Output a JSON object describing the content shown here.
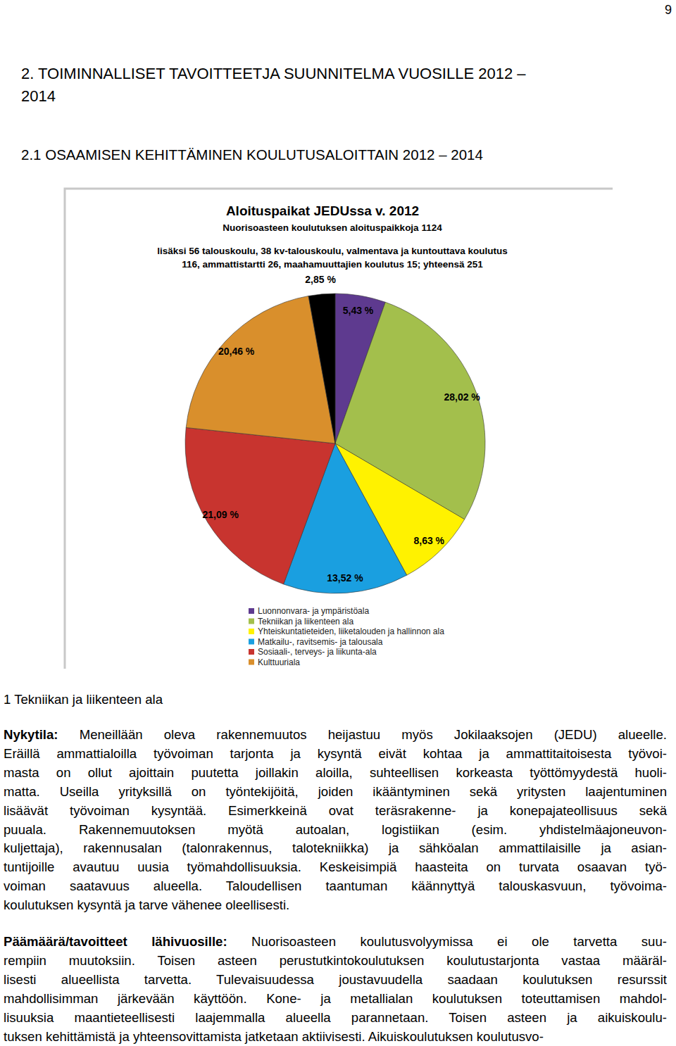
{
  "page_number": "9",
  "headings": [
    "2. TOIMINNALLISET TAVOITTEETJA SUUNNITELMA VUOSILLE 2012 –",
    "2014",
    "2.1 OSAAMISEN KEHITTÄMINEN KOULUTUSALOITTAIN 2012 – 2014"
  ],
  "chart_data": {
    "type": "pie",
    "title": "Aloituspaikat JEDUssa v. 2012",
    "subtitle": [
      "Nuorisoasteen koulutuksen aloituspaikkoja 1124",
      "lisäksi 56 talouskoulu, 38 kv-talouskoulu, valmentava ja kuntouttava koulutus",
      "116, ammattistartti 26, maahamuuttajien koulutus 15; yhteensä 251"
    ],
    "categories": [
      "Luonnonvara- ja ympäristöala",
      "Tekniikan ja liikenteen ala",
      "Yhteiskuntatieteiden, liiketalouden ja hallinnon ala",
      "Matkailu-, ravitsemis- ja talousala",
      "Sosiaali-, terveys- ja liikunta-ala",
      "Kulttuuriala",
      null
    ],
    "values": [
      5.43,
      28.02,
      8.63,
      13.52,
      21.09,
      20.46,
      2.85
    ],
    "value_labels": [
      "5,43 %",
      "28,02 %",
      "8,63 %",
      "13,52 %",
      "21,09 %",
      "20,46 %",
      "2,85 %"
    ],
    "colors": [
      "#5e3a8f",
      "#a3bf4c",
      "#fff200",
      "#1a9fe0",
      "#c8342f",
      "#d98f2c",
      "#000000"
    ],
    "data_labels": true,
    "legend": "bottom"
  },
  "section_title": "1 Tekniikan ja liikenteen ala",
  "paragraphs": [
    {
      "lead": "Nykytila:",
      "lines": [
        "Meneillään oleva rakennemuutos heijastuu myös Jokilaaksojen (JEDU) alueelle.",
        "Eräillä ammattialoilla työvoiman tarjonta ja kysyntä eivät kohtaa ja ammattitaitoisesta työvoi-",
        "masta on ollut ajoittain puutetta joillakin aloilla, suhteellisen korkeasta työttömyydestä huoli-",
        "matta. Useilla yrityksillä on työntekijöitä, joiden ikääntyminen sekä yritysten laajentuminen",
        "lisäävät työvoiman kysyntää. Esimerkkeinä ovat teräsrakenne- ja konepajateollisuus sekä",
        "puuala. Rakennemuutoksen myötä autoalan, logistiikan (esim. yhdistelmäajoneuvon-",
        "kuljettaja), rakennusalan (talonrakennus, talotekniikka) ja sähköalan ammattilaisille ja asian-",
        "tuntijoille avautuu uusia työmahdollisuuksia. Keskeisimpiä haasteita on turvata osaavan työ-",
        "voiman saatavuus alueella. Taloudellisen taantuman käännyttyä talouskasvuun, työvoima-",
        "koulutuksen kysyntä ja tarve vähenee oleellisesti."
      ]
    },
    {
      "lead": "Päämäärä/tavoitteet lähivuosille:",
      "lines": [
        "Nuorisoasteen koulutusvolyymissa ei ole tarvetta suu-",
        "rempiin muutoksiin. Toisen asteen perustutkintokoulutuksen koulutustarjonta vastaa määräl-",
        "lisesti alueellista tarvetta. Tulevaisuudessa joustavuudella saadaan koulutuksen resurssit",
        "mahdollisimman järkevään käyttöön. Kone- ja metallialan koulutuksen toteuttamisen mahdol-",
        "lisuuksia maantieteellisesti laajemmalla alueella parannetaan. Toisen asteen ja aikuiskoulu-",
        "tuksen kehittämistä ja yhteensovittamista jatketaan aktiivisesti. Aikuiskoulutuksen koulutusvo-"
      ]
    }
  ]
}
